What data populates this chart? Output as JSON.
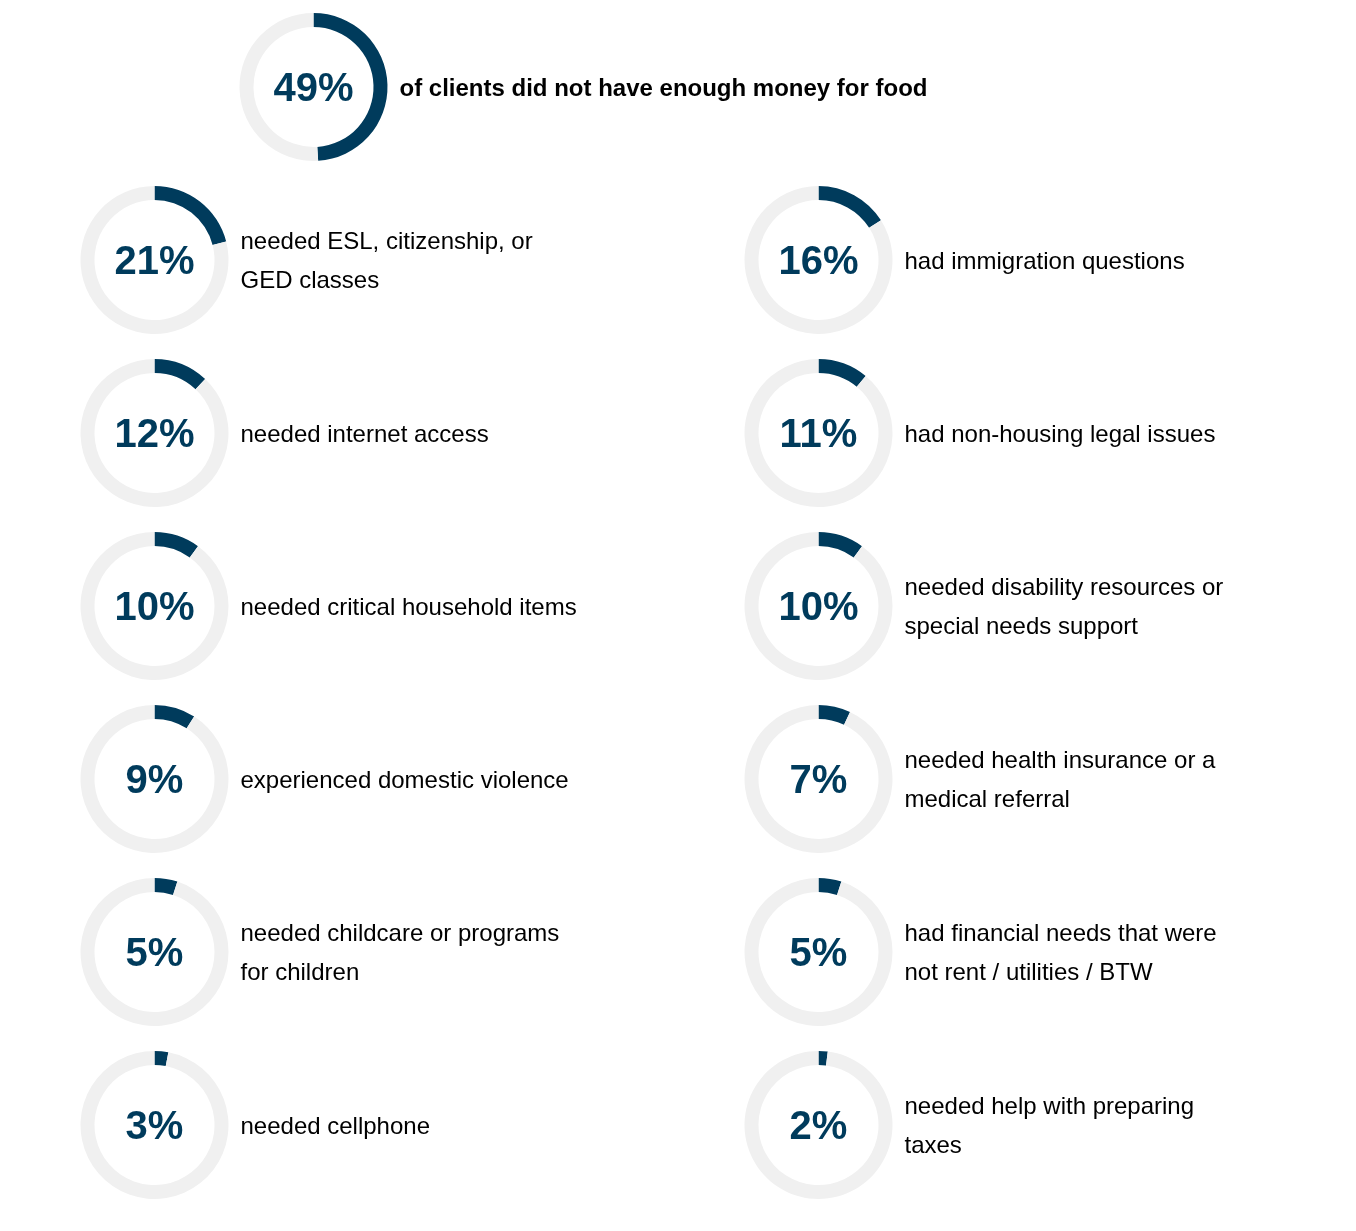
{
  "chart_data": [
    {
      "type": "donut",
      "categories": [
        null,
        null
      ],
      "values": [
        49,
        51
      ],
      "colors": [
        "#003b5c",
        "#f0f0f0"
      ],
      "annotations": [
        "49%"
      ],
      "title": "of clients did not have enough money for food"
    },
    {
      "type": "donut",
      "categories": [
        null,
        null
      ],
      "values": [
        21,
        79
      ],
      "colors": [
        "#003b5c",
        "#f0f0f0"
      ],
      "annotations": [
        "21%"
      ],
      "title": "needed ESL, citizenship, or\nGED classes"
    },
    {
      "type": "donut",
      "categories": [
        null,
        null
      ],
      "values": [
        16,
        84
      ],
      "colors": [
        "#003b5c",
        "#f0f0f0"
      ],
      "annotations": [
        "16%"
      ],
      "title": "had immigration questions"
    },
    {
      "type": "donut",
      "categories": [
        null,
        null
      ],
      "values": [
        12,
        88
      ],
      "colors": [
        "#003b5c",
        "#f0f0f0"
      ],
      "annotations": [
        "12%"
      ],
      "title": "needed internet access"
    },
    {
      "type": "donut",
      "categories": [
        null,
        null
      ],
      "values": [
        11,
        89
      ],
      "colors": [
        "#003b5c",
        "#f0f0f0"
      ],
      "annotations": [
        "11%"
      ],
      "title": "had non-housing legal issues"
    },
    {
      "type": "donut",
      "categories": [
        null,
        null
      ],
      "values": [
        10,
        90
      ],
      "colors": [
        "#003b5c",
        "#f0f0f0"
      ],
      "annotations": [
        "10%"
      ],
      "title": "needed critical household items"
    },
    {
      "type": "donut",
      "categories": [
        null,
        null
      ],
      "values": [
        10,
        90
      ],
      "colors": [
        "#003b5c",
        "#f0f0f0"
      ],
      "annotations": [
        "10%"
      ],
      "title": "needed disability resources or\nspecial needs support"
    },
    {
      "type": "donut",
      "categories": [
        null,
        null
      ],
      "values": [
        9,
        91
      ],
      "colors": [
        "#003b5c",
        "#f0f0f0"
      ],
      "annotations": [
        "9%"
      ],
      "title": "experienced domestic violence"
    },
    {
      "type": "donut",
      "categories": [
        null,
        null
      ],
      "values": [
        7,
        93
      ],
      "colors": [
        "#003b5c",
        "#f0f0f0"
      ],
      "annotations": [
        "7%"
      ],
      "title": "needed health insurance or a\nmedical referral"
    },
    {
      "type": "donut",
      "categories": [
        null,
        null
      ],
      "values": [
        5,
        95
      ],
      "colors": [
        "#003b5c",
        "#f0f0f0"
      ],
      "annotations": [
        "5%"
      ],
      "title": "needed childcare or programs\nfor children"
    },
    {
      "type": "donut",
      "categories": [
        null,
        null
      ],
      "values": [
        5,
        95
      ],
      "colors": [
        "#003b5c",
        "#f0f0f0"
      ],
      "annotations": [
        "5%"
      ],
      "title": "had financial needs that were\nnot rent / utilities / BTW"
    },
    {
      "type": "donut",
      "categories": [
        null,
        null
      ],
      "values": [
        3,
        97
      ],
      "colors": [
        "#003b5c",
        "#f0f0f0"
      ],
      "annotations": [
        "3%"
      ],
      "title": "needed cellphone"
    },
    {
      "type": "donut",
      "categories": [
        null,
        null
      ],
      "values": [
        2,
        98
      ],
      "colors": [
        "#003b5c",
        "#f0f0f0"
      ],
      "annotations": [
        "2%"
      ],
      "title": "needed help with preparing\ntaxes"
    }
  ]
}
